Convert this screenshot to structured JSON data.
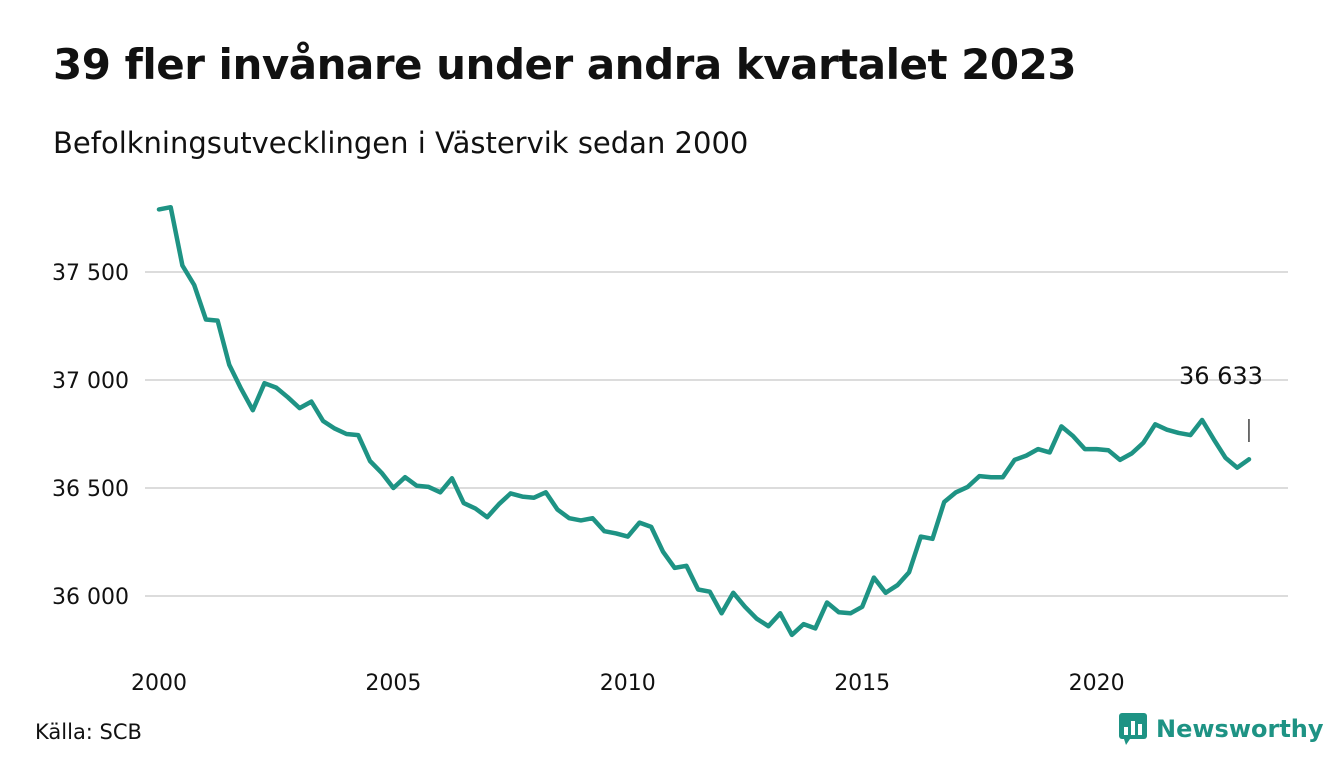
{
  "header": {
    "title": "39 fler invånare under andra kvartalet 2023",
    "subtitle": "Befolkningsutvecklingen i Västervik sedan 2000"
  },
  "footer": {
    "source": "Källa: SCB",
    "brand": "Newsworthy",
    "brand_icon": "chart-logo-icon",
    "brand_color": "#1e9384"
  },
  "chart_data": {
    "type": "line",
    "title": "39 fler invånare under andra kvartalet 2023",
    "subtitle": "Befolkningsutvecklingen i Västervik sedan 2000",
    "xlabel": "",
    "ylabel": "",
    "x_ticks": [
      {
        "value": 2000,
        "label": "2000"
      },
      {
        "value": 2005,
        "label": "2005"
      },
      {
        "value": 2010,
        "label": "2010"
      },
      {
        "value": 2015,
        "label": "2015"
      },
      {
        "value": 2020,
        "label": "2020"
      }
    ],
    "y_ticks": [
      {
        "value": 36000,
        "label": "36 000"
      },
      {
        "value": 36500,
        "label": "36 500"
      },
      {
        "value": 37000,
        "label": "37 000"
      },
      {
        "value": 37500,
        "label": "37 500"
      }
    ],
    "xlim": [
      2000,
      2023.75
    ],
    "ylim": [
      35800,
      37850
    ],
    "grid": true,
    "line_color": "#1e9384",
    "annotation": {
      "x": 2023.25,
      "value": 36633,
      "label": "36 633"
    },
    "series": [
      {
        "x": [
          2000,
          2000.25,
          2000.5,
          2000.75,
          2001,
          2001.25,
          2001.5,
          2001.75,
          2002,
          2002.25,
          2002.5,
          2002.75,
          2003,
          2003.25,
          2003.5,
          2003.75,
          2004,
          2004.25,
          2004.5,
          2004.75,
          2005,
          2005.25,
          2005.5,
          2005.75,
          2006,
          2006.25,
          2006.5,
          2006.75,
          2007,
          2007.25,
          2007.5,
          2007.75,
          2008,
          2008.25,
          2008.5,
          2008.75,
          2009,
          2009.25,
          2009.5,
          2009.75,
          2010,
          2010.25,
          2010.5,
          2010.75,
          2011,
          2011.25,
          2011.5,
          2011.75,
          2012,
          2012.25,
          2012.5,
          2012.75,
          2013,
          2013.25,
          2013.5,
          2013.75,
          2014,
          2014.25,
          2014.5,
          2014.75,
          2015,
          2015.25,
          2015.5,
          2015.75,
          2016,
          2016.25,
          2016.5,
          2016.75,
          2017,
          2017.25,
          2017.5,
          2017.75,
          2018,
          2018.25,
          2018.5,
          2018.75,
          2019,
          2019.25,
          2019.5,
          2019.75,
          2020,
          2020.25,
          2020.5,
          2020.75,
          2021,
          2021.25,
          2021.5,
          2021.75,
          2022,
          2022.25,
          2022.5,
          2022.75,
          2023,
          2023.25
        ],
        "values": [
          37790,
          37800,
          37530,
          37440,
          37280,
          37275,
          37070,
          36960,
          36860,
          36985,
          36965,
          36920,
          36870,
          36900,
          36810,
          36775,
          36750,
          36745,
          36625,
          36570,
          36500,
          36550,
          36510,
          36505,
          36480,
          36545,
          36430,
          36405,
          36365,
          36425,
          36475,
          36460,
          36455,
          36480,
          36400,
          36360,
          36350,
          36360,
          36300,
          36290,
          36275,
          36340,
          36320,
          36205,
          36130,
          36140,
          36030,
          36020,
          35920,
          36015,
          35950,
          35895,
          35860,
          35920,
          35820,
          35870,
          35850,
          35970,
          35925,
          35920,
          35950,
          36085,
          36015,
          36050,
          36110,
          36275,
          36265,
          36435,
          36480,
          36505,
          36555,
          36550,
          36550,
          36630,
          36650,
          36680,
          36665,
          36785,
          36740,
          36680,
          36680,
          36675,
          36630,
          36660,
          36710,
          36795,
          36770,
          36755,
          36745,
          36815,
          36725,
          36640,
          36594,
          36633
        ]
      }
    ]
  }
}
